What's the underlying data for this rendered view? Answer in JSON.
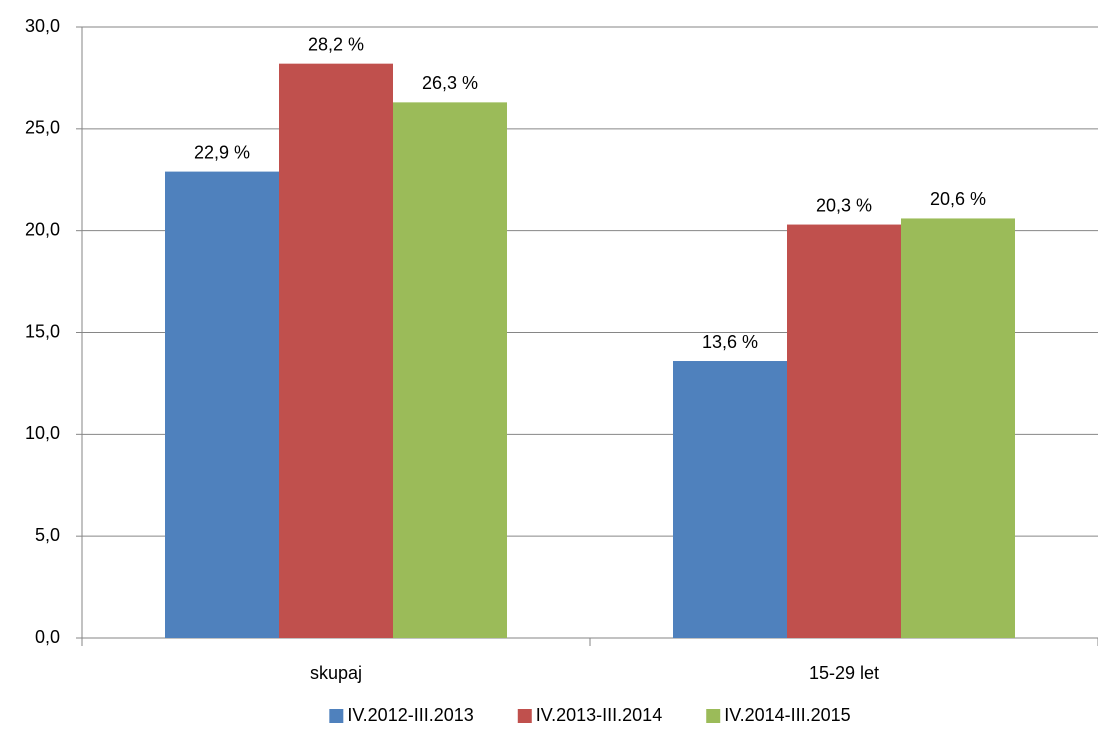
{
  "chart_data": {
    "type": "bar",
    "categories": [
      "skupaj",
      "15-29 let"
    ],
    "series": [
      {
        "name": "IV.2012-III.2013",
        "color": "#4f81bd",
        "values": [
          22.9,
          13.6
        ],
        "value_labels": [
          "22,9 %",
          "13,6 %"
        ]
      },
      {
        "name": "IV.2013-III.2014",
        "color": "#c0504d",
        "values": [
          28.2,
          20.3
        ],
        "value_labels": [
          "28,2 %",
          "20,3 %"
        ]
      },
      {
        "name": "IV.2014-III.2015",
        "color": "#9bbb59",
        "values": [
          26.3,
          20.6
        ],
        "value_labels": [
          "26,3 %",
          "20,6 %"
        ]
      }
    ],
    "ylim": [
      0,
      30
    ],
    "yticks": [
      {
        "value": 0,
        "label": "0,0"
      },
      {
        "value": 5,
        "label": "5,0"
      },
      {
        "value": 10,
        "label": "10,0"
      },
      {
        "value": 15,
        "label": "15,0"
      },
      {
        "value": 20,
        "label": "20,0"
      },
      {
        "value": 25,
        "label": "25,0"
      },
      {
        "value": 30,
        "label": "30,0"
      }
    ],
    "grid": true,
    "legend": "bottom"
  }
}
